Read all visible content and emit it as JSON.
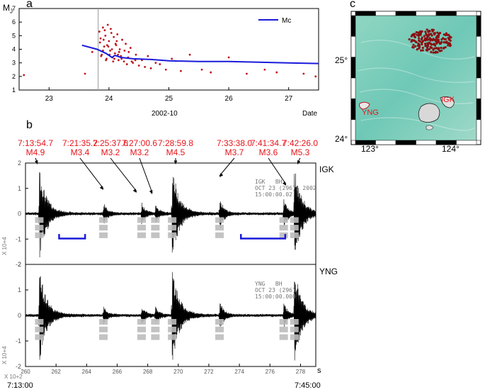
{
  "panel_a": {
    "letter": "a",
    "ylabel_main": "M",
    "ylabel_sub": "J",
    "xlabel": "Date",
    "xaxis_title": "2002-10",
    "legend": "Mc",
    "mc_color": "#1a1adb",
    "point_color": "#c0141a"
  },
  "panel_b": {
    "letter": "b",
    "events": [
      {
        "time": "7:13:54.7",
        "mag": "M4.9"
      },
      {
        "time": "7:21:35.2",
        "mag": "M3.4"
      },
      {
        "time": "7:25:37.6",
        "mag": "M3.2"
      },
      {
        "time": "7:27:00.6",
        "mag": "M3.2"
      },
      {
        "time": "7:28:59.8",
        "mag": "M4.5"
      },
      {
        "time": "7:33:38.0",
        "mag": "M3.7"
      },
      {
        "time": "7:41:34.7",
        "mag": "M3.6"
      },
      {
        "time": "7:42:26.0",
        "mag": "M5.3"
      }
    ],
    "station_top": "IGK",
    "station_bottom": "YNG",
    "info_top": "IGK   BH\nOCT 23 (296), 2002\n15:00:00.02",
    "info_bottom": "YNG   BH\nOCT 23 (296)\n15:00:00.000",
    "amp_scale": "X 10+4",
    "time_scale": "X 10+2",
    "unit": "s",
    "start_time": "7:13:00",
    "end_time": "7:45:00"
  },
  "panel_c": {
    "letter": "c",
    "lat_labels": [
      "25°",
      "24°"
    ],
    "lon_labels": [
      "123°",
      "124°"
    ],
    "site_labels": [
      "IGK",
      "YNG"
    ],
    "event_color": "#8b0f12"
  },
  "chart_data": [
    {
      "type": "scatter",
      "title": "",
      "xlabel": "Date",
      "ylabel": "MJ",
      "xlim": [
        22.5,
        27.5
      ],
      "ylim": [
        1,
        7
      ],
      "x_ticks": [
        23,
        24,
        25,
        26,
        27
      ],
      "y_ticks": [
        1,
        2,
        3,
        4,
        5,
        6,
        7
      ],
      "vline_x": 23.82,
      "series": [
        {
          "name": "Mc",
          "kind": "line",
          "x": [
            23.55,
            23.8,
            23.95,
            24.05,
            24.1,
            24.2,
            24.4,
            24.7,
            25.0,
            25.5,
            26.0,
            26.5,
            27.0,
            27.5
          ],
          "y": [
            4.3,
            4.0,
            3.7,
            3.4,
            3.55,
            3.4,
            3.3,
            3.25,
            3.15,
            3.1,
            3.1,
            3.05,
            3.0,
            2.95
          ]
        },
        {
          "kind": "points",
          "x": [
            22.58,
            23.6,
            23.72,
            23.84,
            23.86,
            23.88,
            23.9,
            23.92,
            23.94,
            23.96,
            23.98,
            24.0,
            24.02,
            24.04,
            24.06,
            24.08,
            24.1,
            24.12,
            24.14,
            24.16,
            24.18,
            24.2,
            24.22,
            24.25,
            24.28,
            24.3,
            24.33,
            24.36,
            24.4,
            24.45,
            24.5,
            24.55,
            24.6,
            24.65,
            24.7,
            24.78,
            24.85,
            24.95,
            25.05,
            25.2,
            25.35,
            25.55,
            25.7,
            26.0,
            26.3,
            26.6,
            26.8,
            27.25,
            27.45,
            23.85,
            23.9,
            23.93,
            23.97,
            24.01,
            24.05,
            24.09,
            24.13,
            24.17,
            24.21,
            24.26,
            24.32,
            24.38,
            24.44,
            23.87,
            23.91,
            23.95,
            23.99,
            24.03,
            24.07,
            24.11,
            24.15
          ],
          "y": [
            2.1,
            2.2,
            3.8,
            5.3,
            4.8,
            3.6,
            5.6,
            4.2,
            5.0,
            3.3,
            5.8,
            4.6,
            3.9,
            5.2,
            3.4,
            4.9,
            3.7,
            4.3,
            5.1,
            3.2,
            4.0,
            3.5,
            4.7,
            3.1,
            4.4,
            2.9,
            3.8,
            4.1,
            3.0,
            3.6,
            2.8,
            3.2,
            2.7,
            3.5,
            2.6,
            3.0,
            2.9,
            2.5,
            3.3,
            2.4,
            3.6,
            2.5,
            2.3,
            3.4,
            2.2,
            2.5,
            2.3,
            2.2,
            2.0,
            4.5,
            3.9,
            5.4,
            4.3,
            3.6,
            4.0,
            3.3,
            4.6,
            3.8,
            3.3,
            3.9,
            3.4,
            3.1,
            3.2,
            3.5,
            4.7,
            3.2,
            4.2,
            5.5,
            3.1,
            4.4,
            3.6
          ]
        }
      ]
    },
    {
      "type": "line",
      "title": "",
      "xlabel": "s",
      "ylabel": "X 10+4",
      "xlim": [
        260,
        279
      ],
      "ylim": [
        -2,
        2
      ],
      "x_ticks": [
        260,
        262,
        264,
        266,
        268,
        270,
        272,
        274,
        276,
        278
      ],
      "y_ticks": [
        -2,
        -1,
        0,
        1,
        2
      ],
      "series": [
        {
          "name": "IGK",
          "event_x": [
            260.9,
            265.1,
            267.6,
            268.5,
            269.6,
            272.7,
            276.9,
            277.6
          ],
          "peak": [
            1.9,
            0.45,
            0.4,
            0.35,
            1.9,
            0.7,
            0.6,
            1.9
          ]
        },
        {
          "name": "YNG",
          "event_x": [
            260.9,
            265.1,
            267.6,
            268.5,
            269.6,
            272.7,
            276.9,
            277.6
          ],
          "peak": [
            1.9,
            0.35,
            0.35,
            0.3,
            1.9,
            0.6,
            0.5,
            1.9
          ]
        }
      ]
    }
  ]
}
